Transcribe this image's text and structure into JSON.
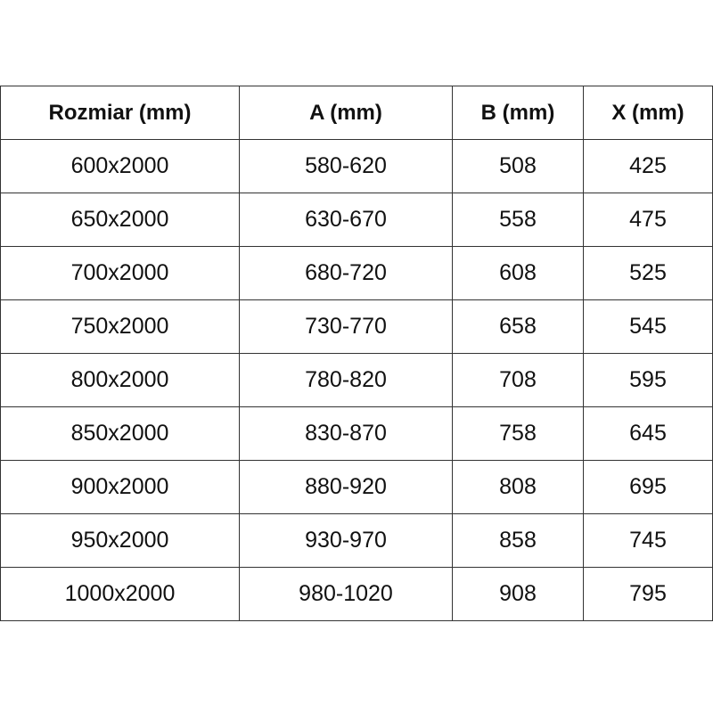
{
  "table": {
    "headers": [
      "Rozmiar (mm)",
      "A (mm)",
      "B (mm)",
      "X (mm)"
    ],
    "rows": [
      [
        "600x2000",
        "580-620",
        "508",
        "425"
      ],
      [
        "650x2000",
        "630-670",
        "558",
        "475"
      ],
      [
        "700x2000",
        "680-720",
        "608",
        "525"
      ],
      [
        "750x2000",
        "730-770",
        "658",
        "545"
      ],
      [
        "800x2000",
        "780-820",
        "708",
        "595"
      ],
      [
        "850x2000",
        "830-870",
        "758",
        "645"
      ],
      [
        "900x2000",
        "880-920",
        "808",
        "695"
      ],
      [
        "950x2000",
        "930-970",
        "858",
        "745"
      ],
      [
        "1000x2000",
        "980-1020",
        "908",
        "795"
      ]
    ]
  }
}
